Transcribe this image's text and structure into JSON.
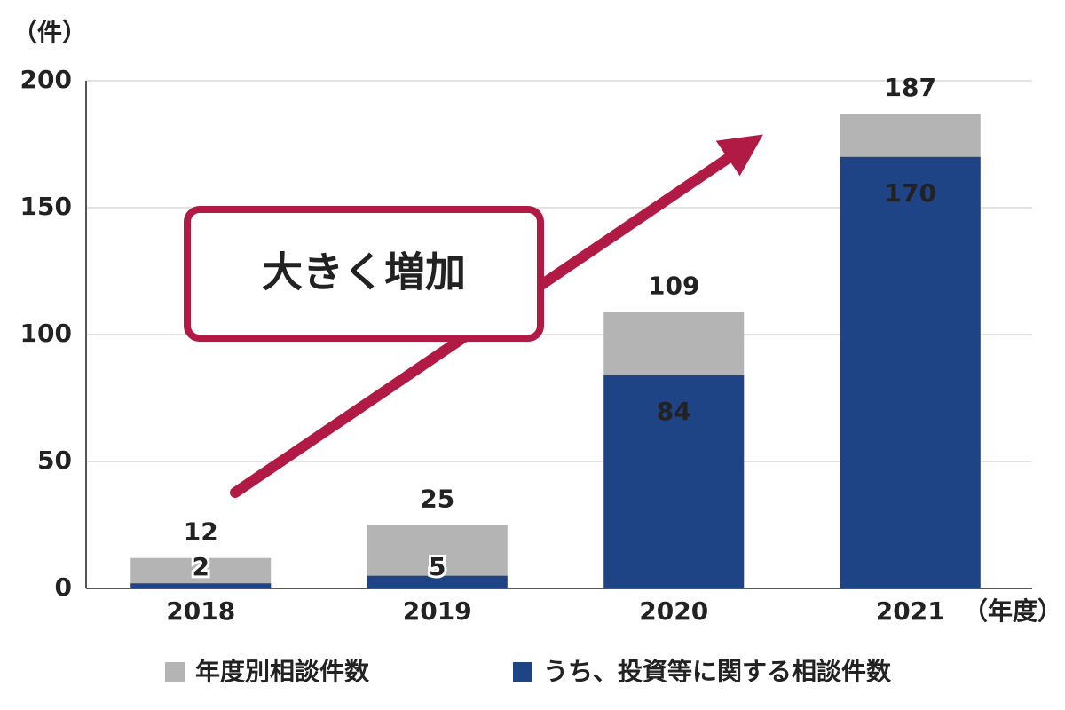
{
  "chart_data": {
    "type": "bar",
    "y_unit": "（件）",
    "x_unit": "（年度）",
    "categories": [
      "2018",
      "2019",
      "2020",
      "2021"
    ],
    "series": [
      {
        "name": "年度別相談件数",
        "color": "#b4b4b4",
        "values": [
          12,
          25,
          109,
          187
        ]
      },
      {
        "name": "うち、投資等に関する相談件数",
        "color": "#1e4485",
        "values": [
          2,
          5,
          84,
          170
        ]
      }
    ],
    "ylim": [
      0,
      200
    ],
    "yticks": [
      0,
      50,
      100,
      150,
      200
    ],
    "grid": true,
    "annotation": "大きく増加"
  }
}
